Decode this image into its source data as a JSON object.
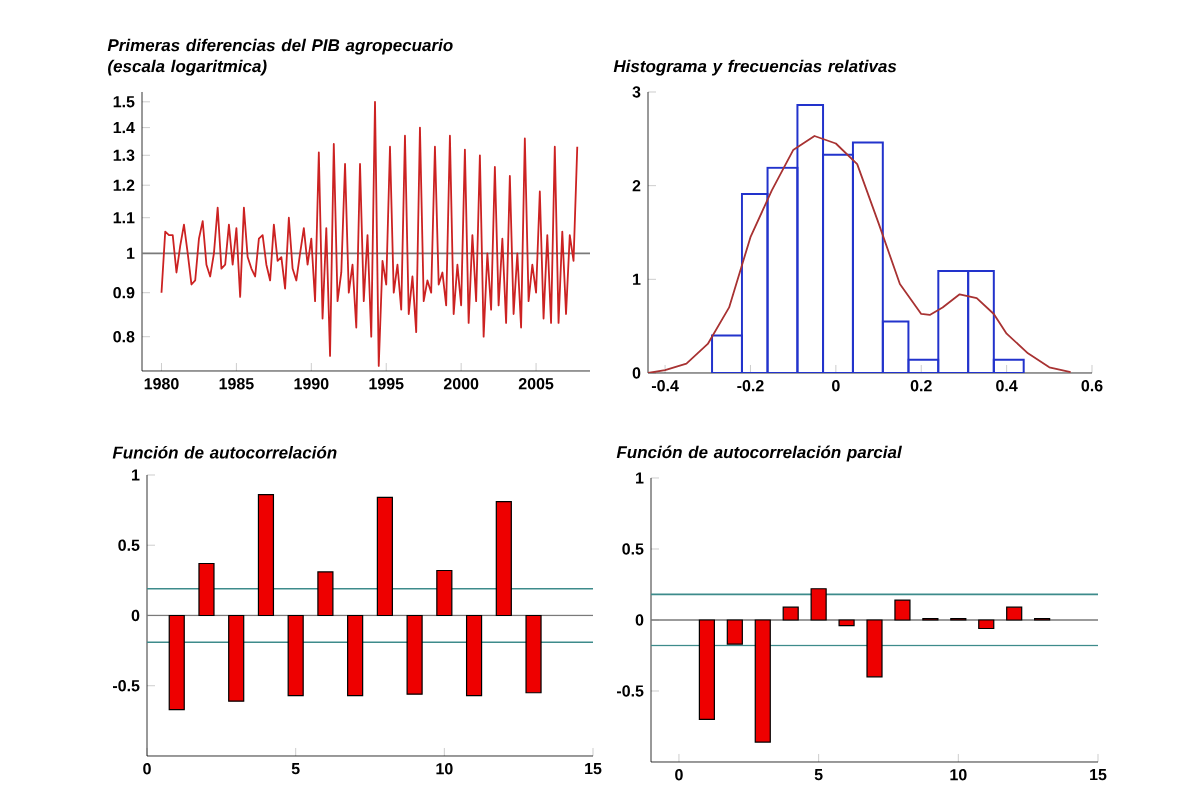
{
  "chart_data": [
    {
      "type": "line",
      "title": "Primeras diferencias del PIB agropecuario (escala logaritmica)",
      "log": "y",
      "color": "#cc2222",
      "x": [
        1980,
        1980.25,
        1980.5,
        1980.75,
        1981,
        1981.25,
        1981.5,
        1981.75,
        1982,
        1982.25,
        1982.5,
        1982.75,
        1983,
        1983.25,
        1983.5,
        1983.75,
        1984,
        1984.25,
        1984.5,
        1984.75,
        1985,
        1985.25,
        1985.5,
        1985.75,
        1986,
        1986.25,
        1986.5,
        1986.75,
        1987,
        1987.25,
        1987.5,
        1987.75,
        1988,
        1988.25,
        1988.5,
        1988.75,
        1989,
        1989.25,
        1989.5,
        1989.75,
        1990,
        1990.25,
        1990.5,
        1990.75,
        1991,
        1991.25,
        1991.5,
        1991.75,
        1992,
        1992.25,
        1992.5,
        1992.75,
        1993,
        1993.25,
        1993.5,
        1993.75,
        1994,
        1994.25,
        1994.5,
        1994.75,
        1995,
        1995.25,
        1995.5,
        1995.75,
        1996,
        1996.25,
        1996.5,
        1996.75,
        1997,
        1997.25,
        1997.5,
        1997.75,
        1998,
        1998.25,
        1998.5,
        1998.75,
        1999,
        1999.25,
        1999.5,
        1999.75,
        2000,
        2000.25,
        2000.5,
        2000.75,
        2001,
        2001.25,
        2001.5,
        2001.75,
        2002,
        2002.25,
        2002.5,
        2002.75,
        2003,
        2003.25,
        2003.5,
        2003.75,
        2004,
        2004.25,
        2004.5,
        2004.75,
        2005,
        2005.25,
        2005.5,
        2005.75,
        2006,
        2006.25,
        2006.5,
        2006.75,
        2007,
        2007.25,
        2007.5,
        2007.75
      ],
      "values": [
        0.9,
        1.06,
        1.05,
        1.05,
        0.95,
        1.02,
        1.08,
        1.0,
        0.92,
        0.93,
        1.04,
        1.09,
        0.97,
        0.94,
        1.0,
        1.13,
        0.96,
        0.97,
        1.08,
        0.97,
        1.07,
        0.89,
        1.13,
        0.99,
        0.96,
        0.94,
        1.04,
        1.05,
        0.97,
        0.93,
        1.08,
        0.98,
        0.99,
        0.91,
        1.1,
        0.96,
        0.93,
        1.0,
        1.07,
        0.97,
        1.04,
        0.88,
        1.31,
        0.84,
        1.07,
        0.76,
        1.34,
        0.88,
        0.95,
        1.27,
        0.9,
        0.97,
        0.82,
        1.27,
        0.88,
        1.05,
        0.8,
        1.5,
        0.74,
        0.98,
        0.92,
        1.33,
        0.9,
        0.97,
        0.86,
        1.37,
        0.85,
        0.94,
        0.81,
        1.4,
        0.88,
        0.93,
        0.9,
        1.33,
        0.92,
        0.95,
        0.87,
        1.37,
        0.85,
        0.97,
        0.87,
        1.32,
        0.83,
        1.05,
        0.88,
        1.3,
        0.8,
        1.0,
        0.86,
        1.26,
        0.87,
        1.04,
        0.83,
        1.23,
        0.85,
        1.0,
        0.82,
        1.36,
        0.88,
        0.97,
        0.9,
        1.18,
        0.84,
        1.05,
        0.83,
        1.33,
        0.83,
        1.06,
        0.85,
        1.05,
        0.98,
        1.33
      ],
      "xlim": [
        1978.7,
        2008.6
      ],
      "ylim": [
        0.73,
        1.54
      ],
      "xticks": [
        1980,
        1985,
        1990,
        1995,
        2000,
        2005
      ],
      "yticks": [
        0.8,
        0.9,
        1,
        1.1,
        1.2,
        1.3,
        1.4,
        1.5
      ],
      "ref_lines": [
        {
          "axis": "y",
          "value": 1,
          "color": "#7a7a7a"
        }
      ]
    },
    {
      "type": "histogram",
      "title": "Histograma y frecuencias relativas",
      "series": [
        {
          "type": "histogram",
          "color": "#2233cc",
          "bins": [
            -0.29,
            -0.22,
            -0.16,
            -0.09,
            -0.03,
            0.04,
            0.11,
            0.17,
            0.24,
            0.31,
            0.37,
            0.44
          ],
          "values": [
            0.4,
            1.91,
            2.19,
            2.86,
            2.33,
            2.46,
            0.55,
            0.14,
            1.09,
            1.09,
            0.14
          ]
        },
        {
          "type": "line",
          "color": "#a83232",
          "x": [
            -0.44,
            -0.4,
            -0.35,
            -0.3,
            -0.25,
            -0.2,
            -0.15,
            -0.1,
            -0.05,
            0,
            0.05,
            0.1,
            0.15,
            0.2,
            0.22,
            0.25,
            0.29,
            0.33,
            0.37,
            0.4,
            0.45,
            0.5,
            0.55
          ],
          "values": [
            0,
            0.03,
            0.1,
            0.31,
            0.7,
            1.45,
            1.95,
            2.38,
            2.53,
            2.45,
            2.23,
            1.6,
            0.95,
            0.63,
            0.62,
            0.7,
            0.84,
            0.8,
            0.63,
            0.42,
            0.21,
            0.06,
            0.01
          ]
        }
      ],
      "xlim": [
        -0.44,
        0.6
      ],
      "ylim": [
        0,
        3
      ],
      "xticks": [
        -0.4,
        -0.2,
        0,
        0.2,
        0.4,
        0.6
      ],
      "yticks": [
        0,
        1,
        2,
        3
      ]
    },
    {
      "type": "bar",
      "title": "Función de autocorrelación",
      "color": "#ee0000",
      "x": [
        1,
        2,
        3,
        4,
        5,
        6,
        7,
        8,
        9,
        10,
        11,
        12,
        13
      ],
      "values": [
        -0.67,
        0.37,
        -0.61,
        0.86,
        -0.57,
        0.31,
        -0.57,
        0.84,
        -0.56,
        0.32,
        -0.57,
        0.81,
        -0.55
      ],
      "xlim": [
        0,
        15
      ],
      "ylim": [
        -1,
        1
      ],
      "xticks": [
        0,
        5,
        10,
        15
      ],
      "yticks": [
        -0.5,
        0,
        0.5,
        1
      ],
      "ref_lines": [
        {
          "axis": "y",
          "value": 0,
          "color": "#7a7a7a"
        },
        {
          "axis": "y",
          "value": 0.19,
          "color": "#3d8b8b"
        },
        {
          "axis": "y",
          "value": -0.19,
          "color": "#3d8b8b"
        }
      ]
    },
    {
      "type": "bar",
      "title": "Función de autocorrelación parcial",
      "color": "#ee0000",
      "x": [
        1,
        2,
        3,
        4,
        5,
        6,
        7,
        8,
        9,
        10,
        11,
        12,
        13
      ],
      "values": [
        -0.7,
        -0.17,
        -0.86,
        0.09,
        0.22,
        -0.04,
        -0.4,
        0.14,
        0.01,
        0.01,
        -0.06,
        0.09,
        0.01
      ],
      "xlim": [
        -1,
        15
      ],
      "ylim": [
        -1,
        1
      ],
      "xticks": [
        0,
        5,
        10,
        15
      ],
      "yticks": [
        -0.5,
        0,
        0.5,
        1
      ],
      "ref_lines": [
        {
          "axis": "y",
          "value": 0,
          "color": "#7a7a7a"
        },
        {
          "axis": "y",
          "value": 0.18,
          "color": "#3d8b8b"
        },
        {
          "axis": "y",
          "value": -0.18,
          "color": "#3d8b8b"
        }
      ]
    }
  ]
}
